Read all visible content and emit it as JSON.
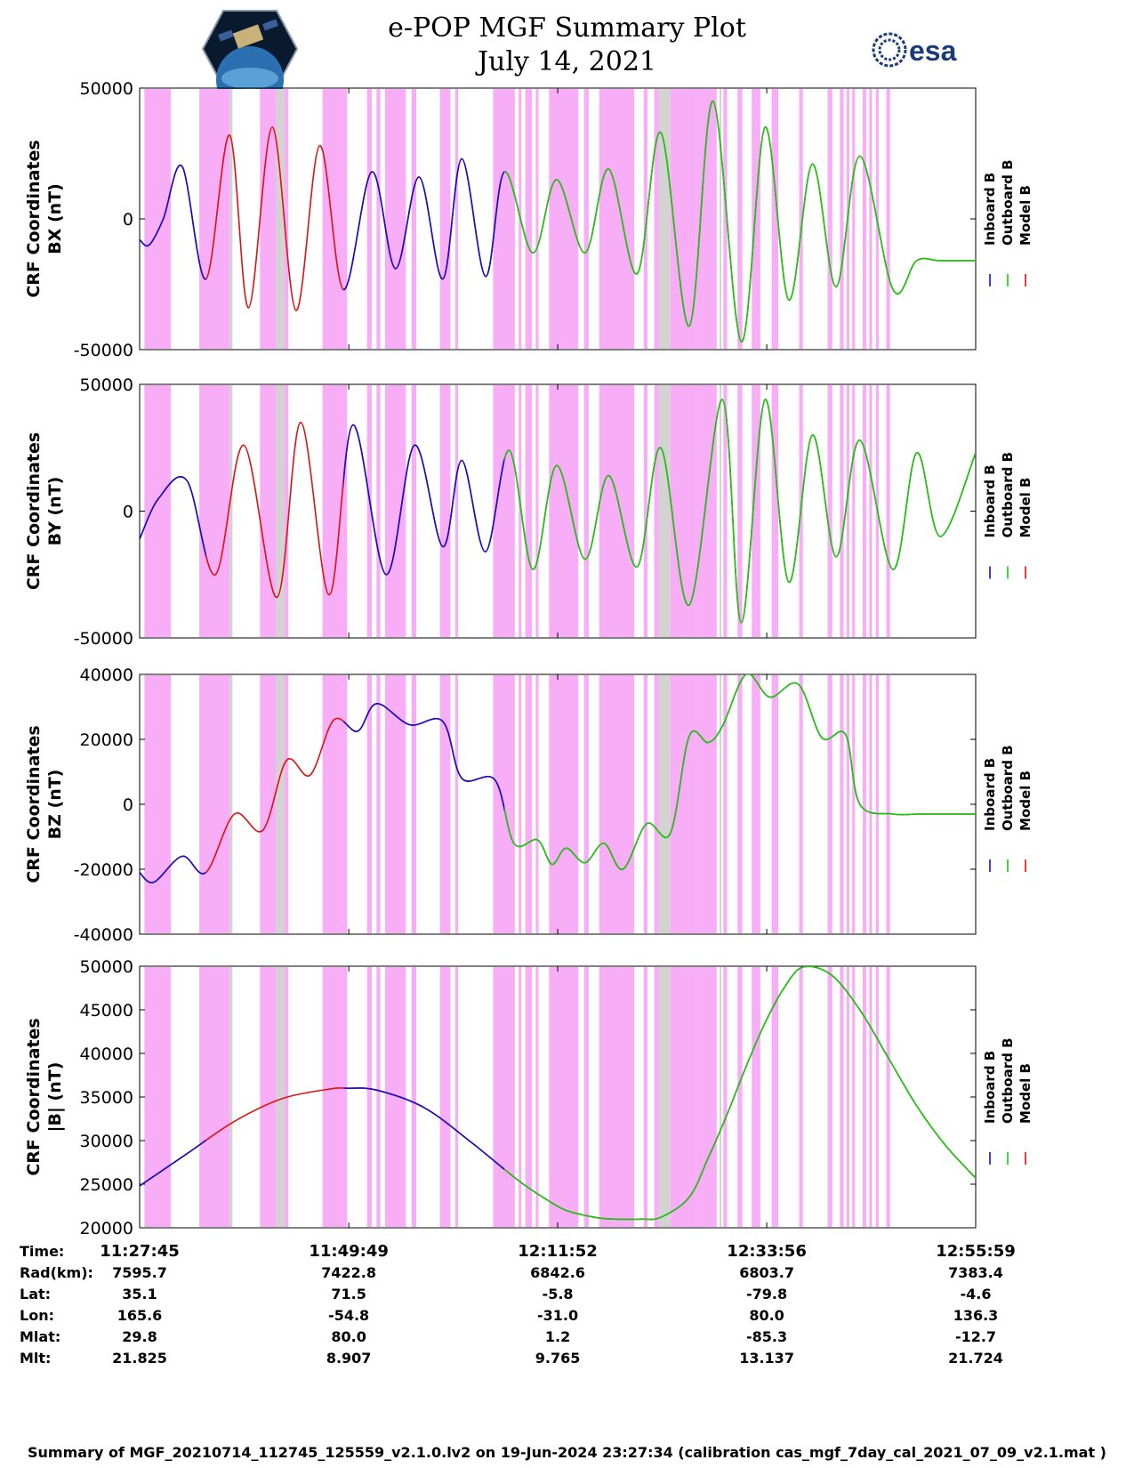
{
  "header": {
    "title": "e-POP MGF Summary Plot",
    "date": "July 14, 2021",
    "left_logo": "cassiope-mission-badge",
    "right_logo_text": "esa"
  },
  "colors": {
    "inboard": "#1010cc",
    "outboard": "#11cc11",
    "model": "#dd1111",
    "band_magenta": "#f7aef7",
    "band_gray": "#d3d3d3"
  },
  "legend": {
    "inboard": "Inboard B",
    "outboard": "Outboard B",
    "model": "Model B"
  },
  "chart_data": [
    {
      "type": "line",
      "ylabel_line1": "CRF Coordinates",
      "ylabel_line2": "BX (nT)",
      "ylim": [
        -50000,
        50000
      ],
      "yticks": [
        -50000,
        0,
        50000
      ],
      "ytick_labels": [
        "-50000",
        "0",
        "50000"
      ],
      "xlim": [
        0,
        88.23
      ],
      "x_unit": "minutes after 11:27:45",
      "series_note": "blue=Inboard B, green=Outboard B, red=Model B (overlapping)",
      "x": [
        0,
        1,
        2.5,
        4.5,
        7,
        9.5,
        11.5,
        14,
        16.5,
        19,
        21.5,
        24.5,
        27,
        29.5,
        32,
        34,
        36.5,
        38.5,
        41.5,
        44,
        47,
        49.5,
        52.5,
        55,
        58,
        60.5,
        63.5,
        66,
        68.5,
        71,
        73.5,
        76,
        79.5,
        82,
        84.5,
        88.23
      ],
      "values": [
        -8000,
        -10000,
        0,
        20000,
        -23000,
        32000,
        -34000,
        35000,
        -35000,
        28000,
        -27000,
        18000,
        -19000,
        16000,
        -23000,
        23000,
        -22000,
        18000,
        -13000,
        15000,
        -13000,
        19000,
        -21000,
        33000,
        -41000,
        45000,
        -47000,
        35000,
        -31000,
        21000,
        -26000,
        24000,
        -27000,
        -16000,
        -16000,
        -16000
      ]
    },
    {
      "type": "line",
      "ylabel_line1": "CRF Coordinates",
      "ylabel_line2": "BY (nT)",
      "ylim": [
        -50000,
        50000
      ],
      "yticks": [
        -50000,
        0,
        50000
      ],
      "ytick_labels": [
        "-50000",
        "0",
        "50000"
      ],
      "xlim": [
        0,
        88.23
      ],
      "x": [
        0,
        2,
        5,
        8,
        11,
        14.5,
        17,
        20,
        22.5,
        26,
        29,
        32,
        34,
        36.5,
        39,
        41.5,
        44,
        47,
        49.5,
        52.5,
        55,
        58,
        61.5,
        63.5,
        66,
        68.5,
        71,
        73.5,
        76,
        79.5,
        82,
        84.5,
        88.23
      ],
      "values": [
        -11000,
        5000,
        12000,
        -25000,
        26000,
        -34000,
        35000,
        -33000,
        34000,
        -25000,
        26000,
        -14000,
        20000,
        -16000,
        24000,
        -23000,
        18000,
        -19000,
        14000,
        -22000,
        25000,
        -37000,
        44000,
        -44000,
        44000,
        -28000,
        30000,
        -18000,
        28000,
        -23000,
        23000,
        -10000,
        23000
      ]
    },
    {
      "type": "line",
      "ylabel_line1": "CRF Coordinates",
      "ylabel_line2": "BZ (nT)",
      "ylim": [
        -40000,
        40000
      ],
      "yticks": [
        -40000,
        -20000,
        0,
        20000,
        40000
      ],
      "ytick_labels": [
        "-40000",
        "-20000",
        "0",
        "20000",
        "40000"
      ],
      "xlim": [
        0,
        88.23
      ],
      "x": [
        0,
        1.5,
        4.5,
        7,
        10,
        13,
        15.5,
        18,
        20.5,
        23,
        25,
        28.5,
        32,
        34,
        37.5,
        39.5,
        42,
        43.5,
        45,
        47,
        49,
        51,
        53.5,
        56,
        58,
        60,
        61.5,
        64,
        66.5,
        69.5,
        72,
        74.5,
        76,
        79.5,
        82,
        84.5,
        86.5,
        88.23
      ],
      "values": [
        -21000,
        -24000,
        -16000,
        -21000,
        -3000,
        -8000,
        13500,
        9000,
        26000,
        22500,
        31000,
        24500,
        25500,
        8000,
        7500,
        -12000,
        -11000,
        -18500,
        -13500,
        -18000,
        -12000,
        -20000,
        -6000,
        -9000,
        21000,
        19000,
        24000,
        40000,
        33000,
        37000,
        20500,
        21500,
        0,
        -3000,
        -3000,
        -3000,
        -3000,
        -3000
      ]
    },
    {
      "type": "line",
      "ylabel_line1": "CRF Coordinates",
      "ylabel_line2": "|B| (nT)",
      "ylim": [
        20000,
        50000
      ],
      "yticks": [
        20000,
        25000,
        30000,
        35000,
        40000,
        45000,
        50000
      ],
      "ytick_labels": [
        "20000",
        "25000",
        "30000",
        "35000",
        "40000",
        "45000",
        "50000"
      ],
      "xlim": [
        0,
        88.23
      ],
      "x": [
        0,
        5,
        10,
        15,
        20,
        22,
        25,
        30,
        35,
        40,
        43,
        45,
        48,
        50,
        53,
        55,
        58,
        60,
        62,
        64,
        66,
        68,
        70,
        73,
        76,
        79,
        82,
        85,
        88.23
      ],
      "values": [
        24800,
        28500,
        32200,
        34800,
        35900,
        36000,
        35800,
        33800,
        29800,
        25400,
        23200,
        22000,
        21200,
        21000,
        21000,
        21200,
        23500,
        28000,
        33000,
        38500,
        43500,
        47500,
        49900,
        49000,
        45000,
        39500,
        34000,
        29500,
        25700
      ]
    }
  ],
  "bands_minutes": [
    [
      0.5,
      3.3,
      "m"
    ],
    [
      6.3,
      9.5,
      "m"
    ],
    [
      9.5,
      9.8,
      "g"
    ],
    [
      12.7,
      14.4,
      "m"
    ],
    [
      14.4,
      15.3,
      "g"
    ],
    [
      15.3,
      15.7,
      "m"
    ],
    [
      19.3,
      21.9,
      "m"
    ],
    [
      24.0,
      24.5,
      "m"
    ],
    [
      25.0,
      25.4,
      "m"
    ],
    [
      25.9,
      28.1,
      "m"
    ],
    [
      28.7,
      29.2,
      "m"
    ],
    [
      31.7,
      32.8,
      "m"
    ],
    [
      33.3,
      33.6,
      "m"
    ],
    [
      37.3,
      39.6,
      "m"
    ],
    [
      40.0,
      40.3,
      "m"
    ],
    [
      40.7,
      41.4,
      "m"
    ],
    [
      41.8,
      42.1,
      "m"
    ],
    [
      43.2,
      46.3,
      "m"
    ],
    [
      46.9,
      47.4,
      "m"
    ],
    [
      48.5,
      52.2,
      "m"
    ],
    [
      53.2,
      53.6,
      "m"
    ],
    [
      54.3,
      54.8,
      "m"
    ],
    [
      54.8,
      56.0,
      "g"
    ],
    [
      56.0,
      58.7,
      "m"
    ],
    [
      58.7,
      60.9,
      "m"
    ],
    [
      61.2,
      61.4,
      "g"
    ],
    [
      61.6,
      62.0,
      "m"
    ],
    [
      63.1,
      63.6,
      "m"
    ],
    [
      64.6,
      65.5,
      "m"
    ],
    [
      66.7,
      67.4,
      "m"
    ],
    [
      69.6,
      70.0,
      "m"
    ],
    [
      72.6,
      73.1,
      "m"
    ],
    [
      73.9,
      74.3,
      "m"
    ],
    [
      74.6,
      74.9,
      "m"
    ],
    [
      75.2,
      75.5,
      "m"
    ],
    [
      76.3,
      76.7,
      "m"
    ],
    [
      77.0,
      77.3,
      "m"
    ],
    [
      77.7,
      78.0,
      "m"
    ],
    [
      78.8,
      79.2,
      "m"
    ]
  ],
  "x_axis": {
    "tick_minutes": [
      0,
      22.07,
      44.12,
      66.18,
      88.23
    ],
    "row_labels": [
      "Time:",
      "Rad(km):",
      "Lat:",
      "Lon:",
      "Mlat:",
      "Mlt:"
    ],
    "columns": [
      [
        "11:27:45",
        "7595.7",
        "35.1",
        "165.6",
        "29.8",
        "21.825"
      ],
      [
        "11:49:49",
        "7422.8",
        "71.5",
        "-54.8",
        "80.0",
        "8.907"
      ],
      [
        "12:11:52",
        "6842.6",
        "-5.8",
        "-31.0",
        "1.2",
        "9.765"
      ],
      [
        "12:33:56",
        "6803.7",
        "-79.8",
        "80.0",
        "-85.3",
        "13.137"
      ],
      [
        "12:55:59",
        "7383.4",
        "-4.6",
        "136.3",
        "-12.7",
        "21.724"
      ]
    ]
  },
  "footer": "Summary of MGF_20210714_112745_125559_v2.1.0.lv2 on 19-Jun-2024 23:27:34 (calibration cas_mgf_7day_cal_2021_07_09_v2.1.mat )"
}
